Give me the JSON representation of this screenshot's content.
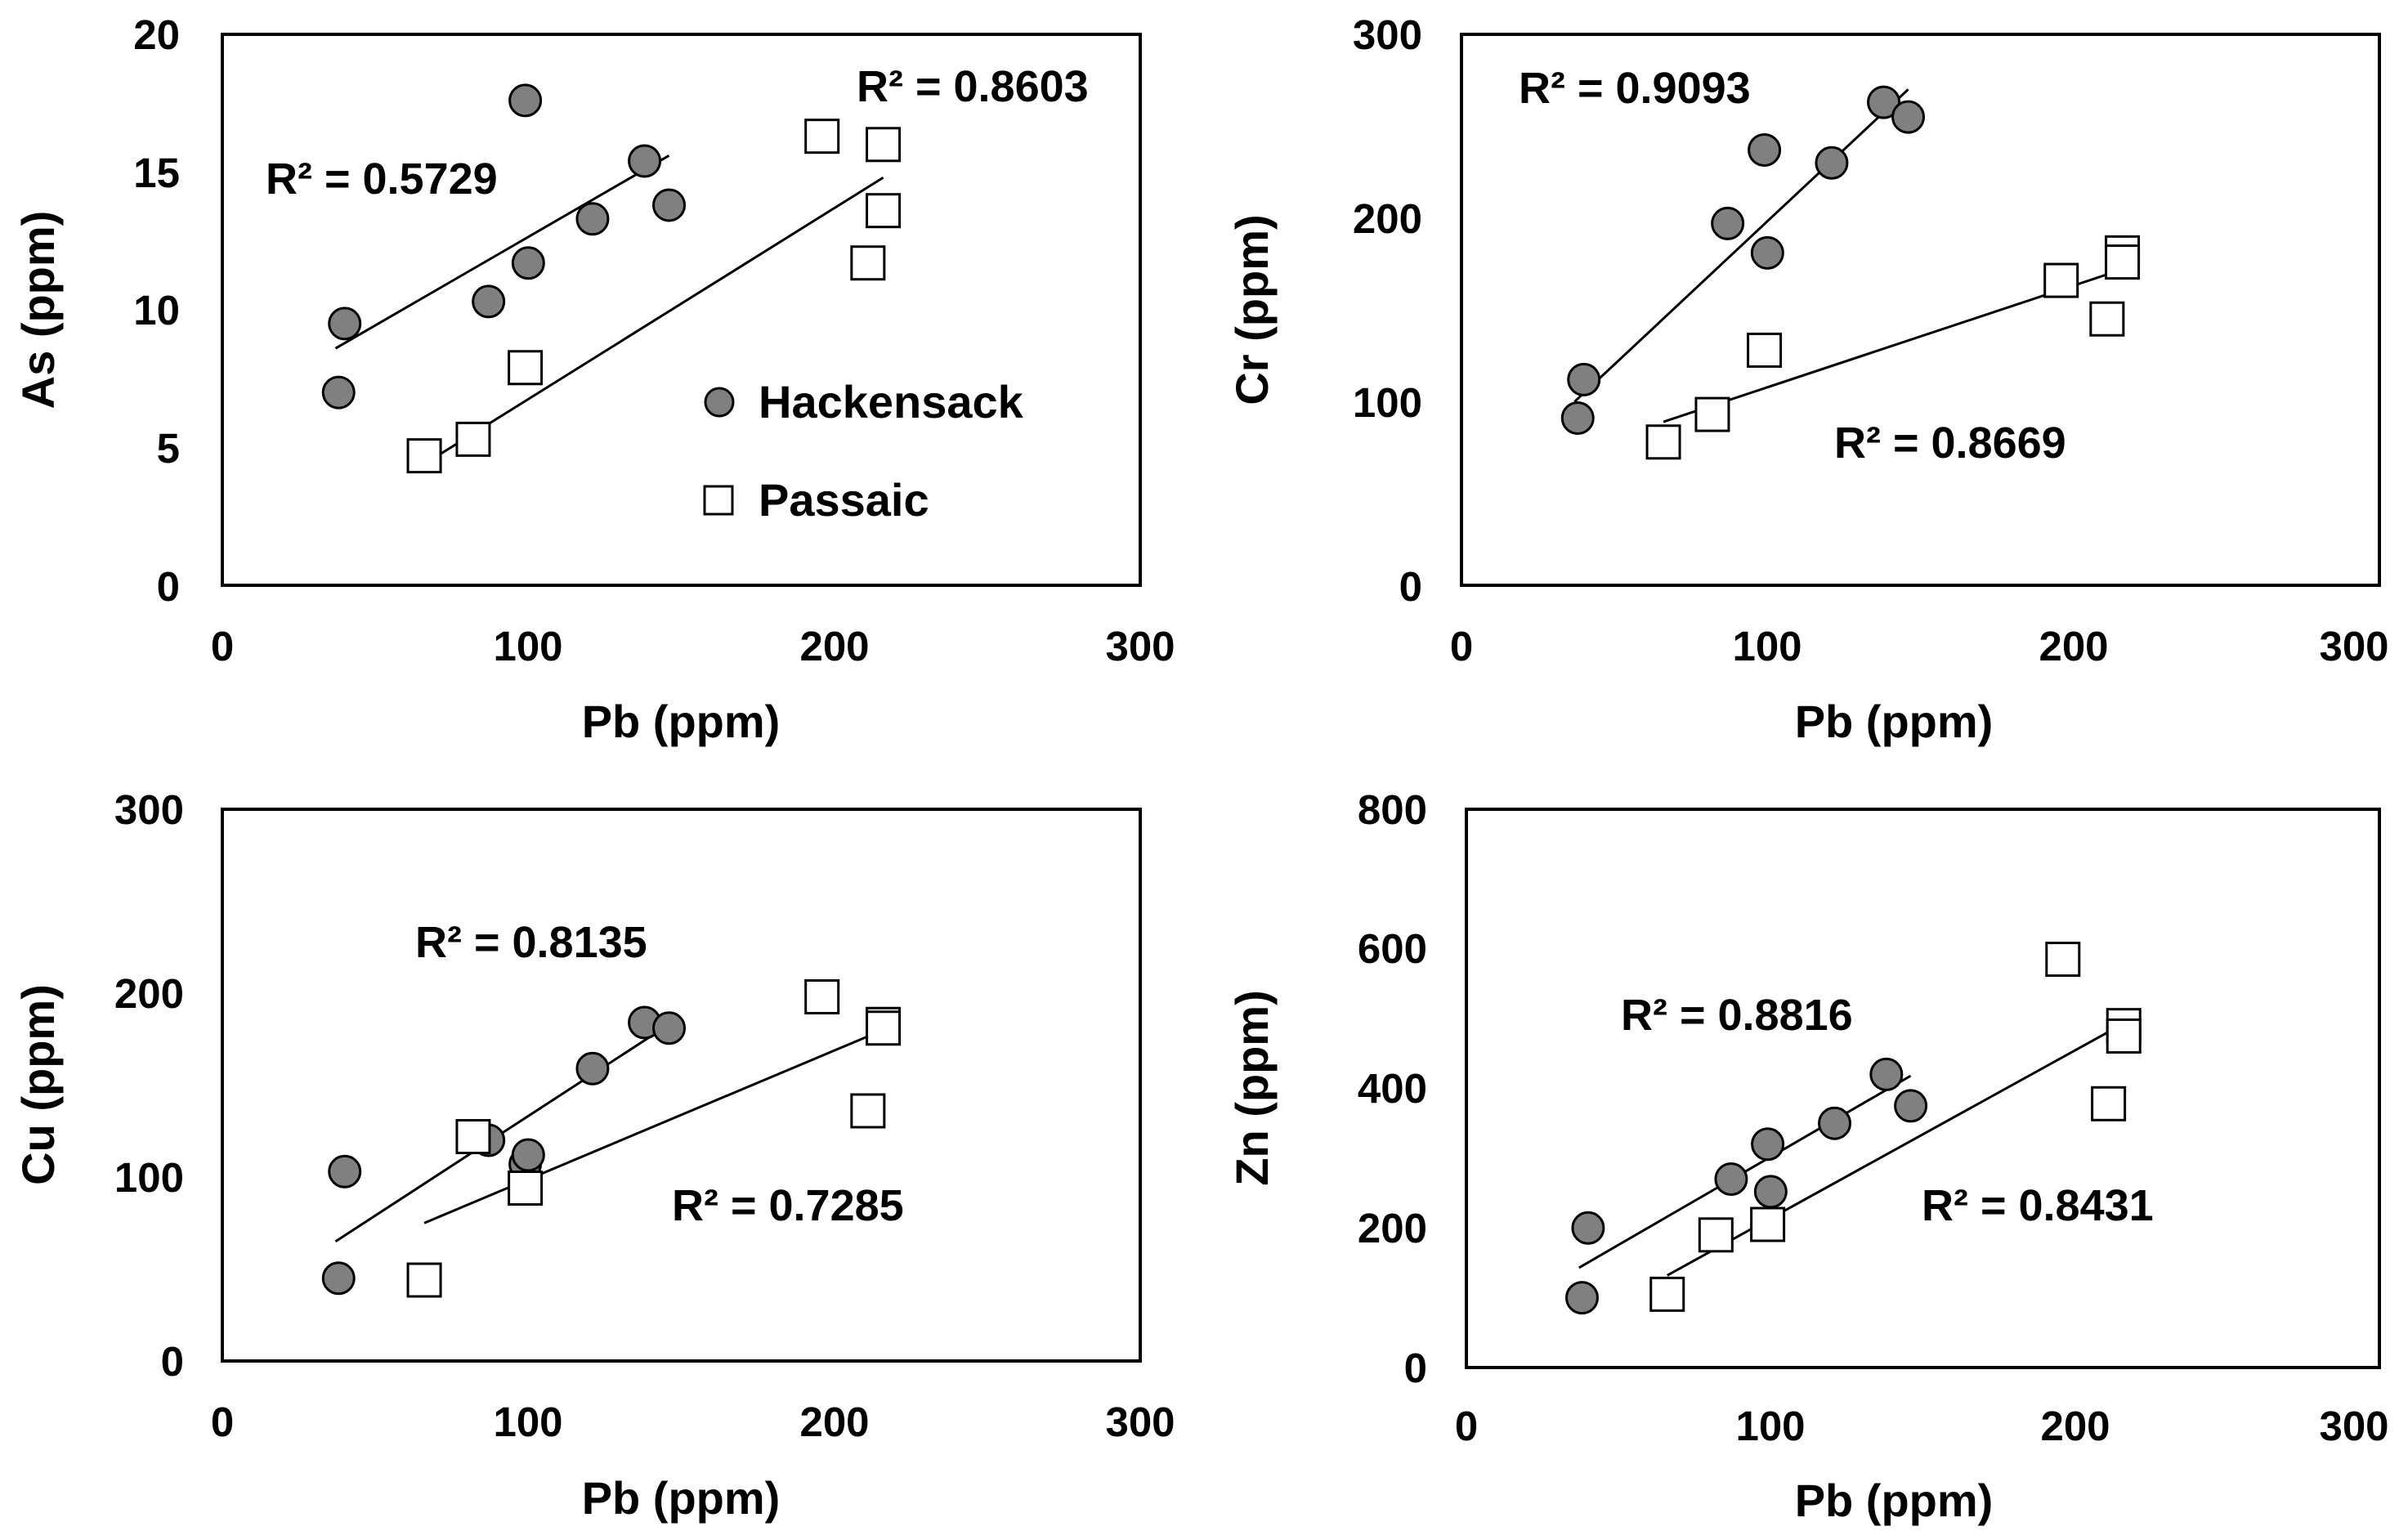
{
  "colors": {
    "hackensack_fill": "#808080",
    "passaic_fill": "#ffffff",
    "stroke": "#000000"
  },
  "legend": {
    "hackensack": "Hackensack",
    "passaic": "Passaic"
  },
  "chart_data": [
    {
      "type": "scatter",
      "title": "",
      "xlabel": "Pb (ppm)",
      "ylabel": "As (ppm)",
      "xlim": [
        0,
        300
      ],
      "ylim": [
        0,
        20
      ],
      "xticks": [
        "0",
        "100",
        "200",
        "300"
      ],
      "yticks": [
        "0",
        "5",
        "10",
        "15",
        "20"
      ],
      "legend_position": "bottom-right",
      "series": [
        {
          "name": "Hackensack",
          "marker": "circle",
          "x": [
            38,
            40,
            87,
            99,
            100,
            121,
            138,
            146
          ],
          "y": [
            7.0,
            9.5,
            10.3,
            17.6,
            11.7,
            13.3,
            15.4,
            13.8
          ],
          "trend": [
            [
              37,
              8.6
            ],
            [
              146,
              15.6
            ]
          ],
          "r2": "R² = 0.5729"
        },
        {
          "name": "Passaic",
          "marker": "square",
          "x": [
            66,
            82,
            99,
            196,
            211,
            216,
            216
          ],
          "y": [
            4.7,
            5.3,
            7.9,
            16.3,
            11.7,
            16.0,
            13.6
          ],
          "trend": [
            [
              66,
              4.4
            ],
            [
              216,
              14.8
            ]
          ],
          "r2": "R² = 0.8603"
        }
      ]
    },
    {
      "type": "scatter",
      "title": "",
      "xlabel": "Pb (ppm)",
      "ylabel": "Cr (ppm)",
      "xlim": [
        0,
        300
      ],
      "ylim": [
        0,
        300
      ],
      "xticks": [
        "0",
        "100",
        "200",
        "300"
      ],
      "yticks": [
        "0",
        "100",
        "200",
        "300"
      ],
      "series": [
        {
          "name": "Hackensack",
          "marker": "circle",
          "x": [
            38,
            40,
            87,
            99,
            100,
            121,
            138,
            146
          ],
          "y": [
            91,
            112,
            197,
            237,
            181,
            230,
            263,
            255
          ],
          "trend": [
            [
              37,
              100
            ],
            [
              146,
              270
            ]
          ],
          "r2": "R² = 0.9093"
        },
        {
          "name": "Passaic",
          "marker": "square",
          "x": [
            66,
            82,
            99,
            196,
            211,
            216,
            216
          ],
          "y": [
            78,
            93,
            128,
            166,
            145,
            181,
            176
          ],
          "trend": [
            [
              66,
              89
            ],
            [
              216,
              172
            ]
          ],
          "r2": "R² = 0.8669"
        }
      ]
    },
    {
      "type": "scatter",
      "title": "",
      "xlabel": "Pb (ppm)",
      "ylabel": "Cu (ppm)",
      "xlim": [
        0,
        300
      ],
      "ylim": [
        0,
        300
      ],
      "xticks": [
        "0",
        "100",
        "200",
        "300"
      ],
      "yticks": [
        "0",
        "100",
        "200",
        "300"
      ],
      "series": [
        {
          "name": "Hackensack",
          "marker": "circle",
          "x": [
            38,
            40,
            87,
            99,
            100,
            121,
            138,
            146
          ],
          "y": [
            45,
            103,
            120,
            107,
            112,
            159,
            184,
            181
          ],
          "trend": [
            [
              37,
              65
            ],
            [
              146,
              183
            ]
          ],
          "r2": "R² = 0.8135"
        },
        {
          "name": "Passaic",
          "marker": "square",
          "x": [
            66,
            82,
            99,
            196,
            211,
            216,
            216
          ],
          "y": [
            44,
            122,
            94,
            198,
            136,
            183,
            181
          ],
          "trend": [
            [
              66,
              75
            ],
            [
              216,
              180
            ]
          ],
          "r2": "R² = 0.7285"
        }
      ]
    },
    {
      "type": "scatter",
      "title": "",
      "xlabel": "Pb (ppm)",
      "ylabel": "Zn (ppm)",
      "xlim": [
        0,
        300
      ],
      "ylim": [
        0,
        800
      ],
      "xticks": [
        "0",
        "100",
        "200",
        "300"
      ],
      "yticks": [
        "0",
        "200",
        "400",
        "600",
        "800"
      ],
      "series": [
        {
          "name": "Hackensack",
          "marker": "circle",
          "x": [
            38,
            40,
            87,
            99,
            100,
            121,
            138,
            146
          ],
          "y": [
            100,
            200,
            270,
            320,
            252,
            350,
            420,
            375
          ],
          "trend": [
            [
              37,
              143
            ],
            [
              146,
              418
            ]
          ],
          "r2": "R² = 0.8816"
        },
        {
          "name": "Passaic",
          "marker": "square",
          "x": [
            66,
            82,
            99,
            196,
            211,
            216,
            216
          ],
          "y": [
            105,
            190,
            205,
            585,
            378,
            490,
            475
          ],
          "trend": [
            [
              66,
              132
            ],
            [
              216,
              493
            ]
          ],
          "r2": "R² = 0.8431"
        }
      ]
    }
  ]
}
